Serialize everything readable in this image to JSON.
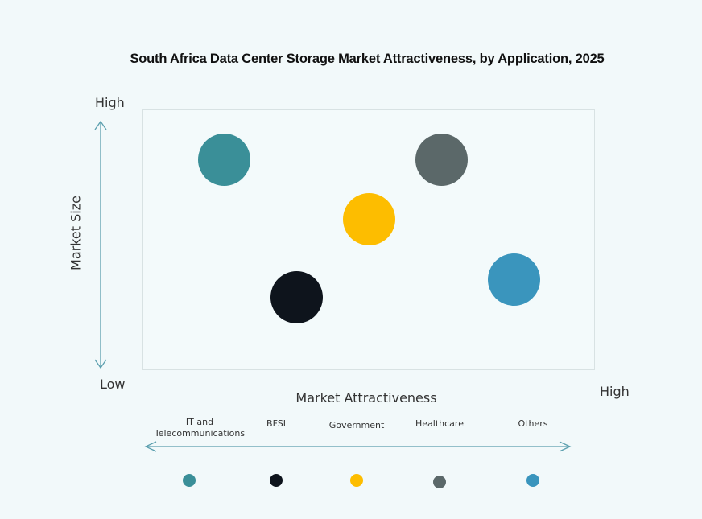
{
  "chart_data": {
    "type": "scatter",
    "subtype": "bubble-matrix",
    "title": "South Africa Data Center Storage Market Attractiveness,  by Application, 2025",
    "xlabel": "Market Attractiveness",
    "ylabel": "Market Size",
    "x_axis": {
      "low_label": "",
      "high_label": "High"
    },
    "y_axis": {
      "low_label": "Low",
      "high_label": "High"
    },
    "grid": false,
    "xlim": [
      0,
      10
    ],
    "ylim": [
      0,
      10
    ],
    "legend_position": "bottom",
    "series": [
      {
        "name": "IT and Telecommunications",
        "x": 1.8,
        "y": 8.1,
        "color": "#3a8f98"
      },
      {
        "name": "BFSI",
        "x": 3.4,
        "y": 2.8,
        "color": "#0e141c"
      },
      {
        "name": "Government",
        "x": 5.0,
        "y": 5.8,
        "color": "#fdbd00"
      },
      {
        "name": "Healthcare",
        "x": 6.6,
        "y": 8.1,
        "color": "#5b6869"
      },
      {
        "name": "Others",
        "x": 8.2,
        "y": 3.5,
        "color": "#3a95bd"
      }
    ]
  },
  "labels": {
    "title": "South Africa Data Center Storage Market Attractiveness,  by Application, 2025",
    "y_high": "High",
    "y_low": "Low",
    "y_title": "Market Size",
    "x_title": "Market Attractiveness",
    "x_high": "High"
  },
  "legend": [
    {
      "line1": "IT and",
      "line2": "Telecommunications",
      "color": "#3a8f98"
    },
    {
      "line1": "BFSI",
      "line2": "",
      "color": "#0e141c"
    },
    {
      "line1": "Government",
      "line2": "",
      "color": "#fdbd00"
    },
    {
      "line1": "Healthcare",
      "line2": "",
      "color": "#5b6869"
    },
    {
      "line1": "Others",
      "line2": "",
      "color": "#3a95bd"
    }
  ],
  "colors": {
    "axis_arrow": "#5b9fae",
    "plot_border": "#d8e2e3",
    "background": "#f2f9fa"
  }
}
